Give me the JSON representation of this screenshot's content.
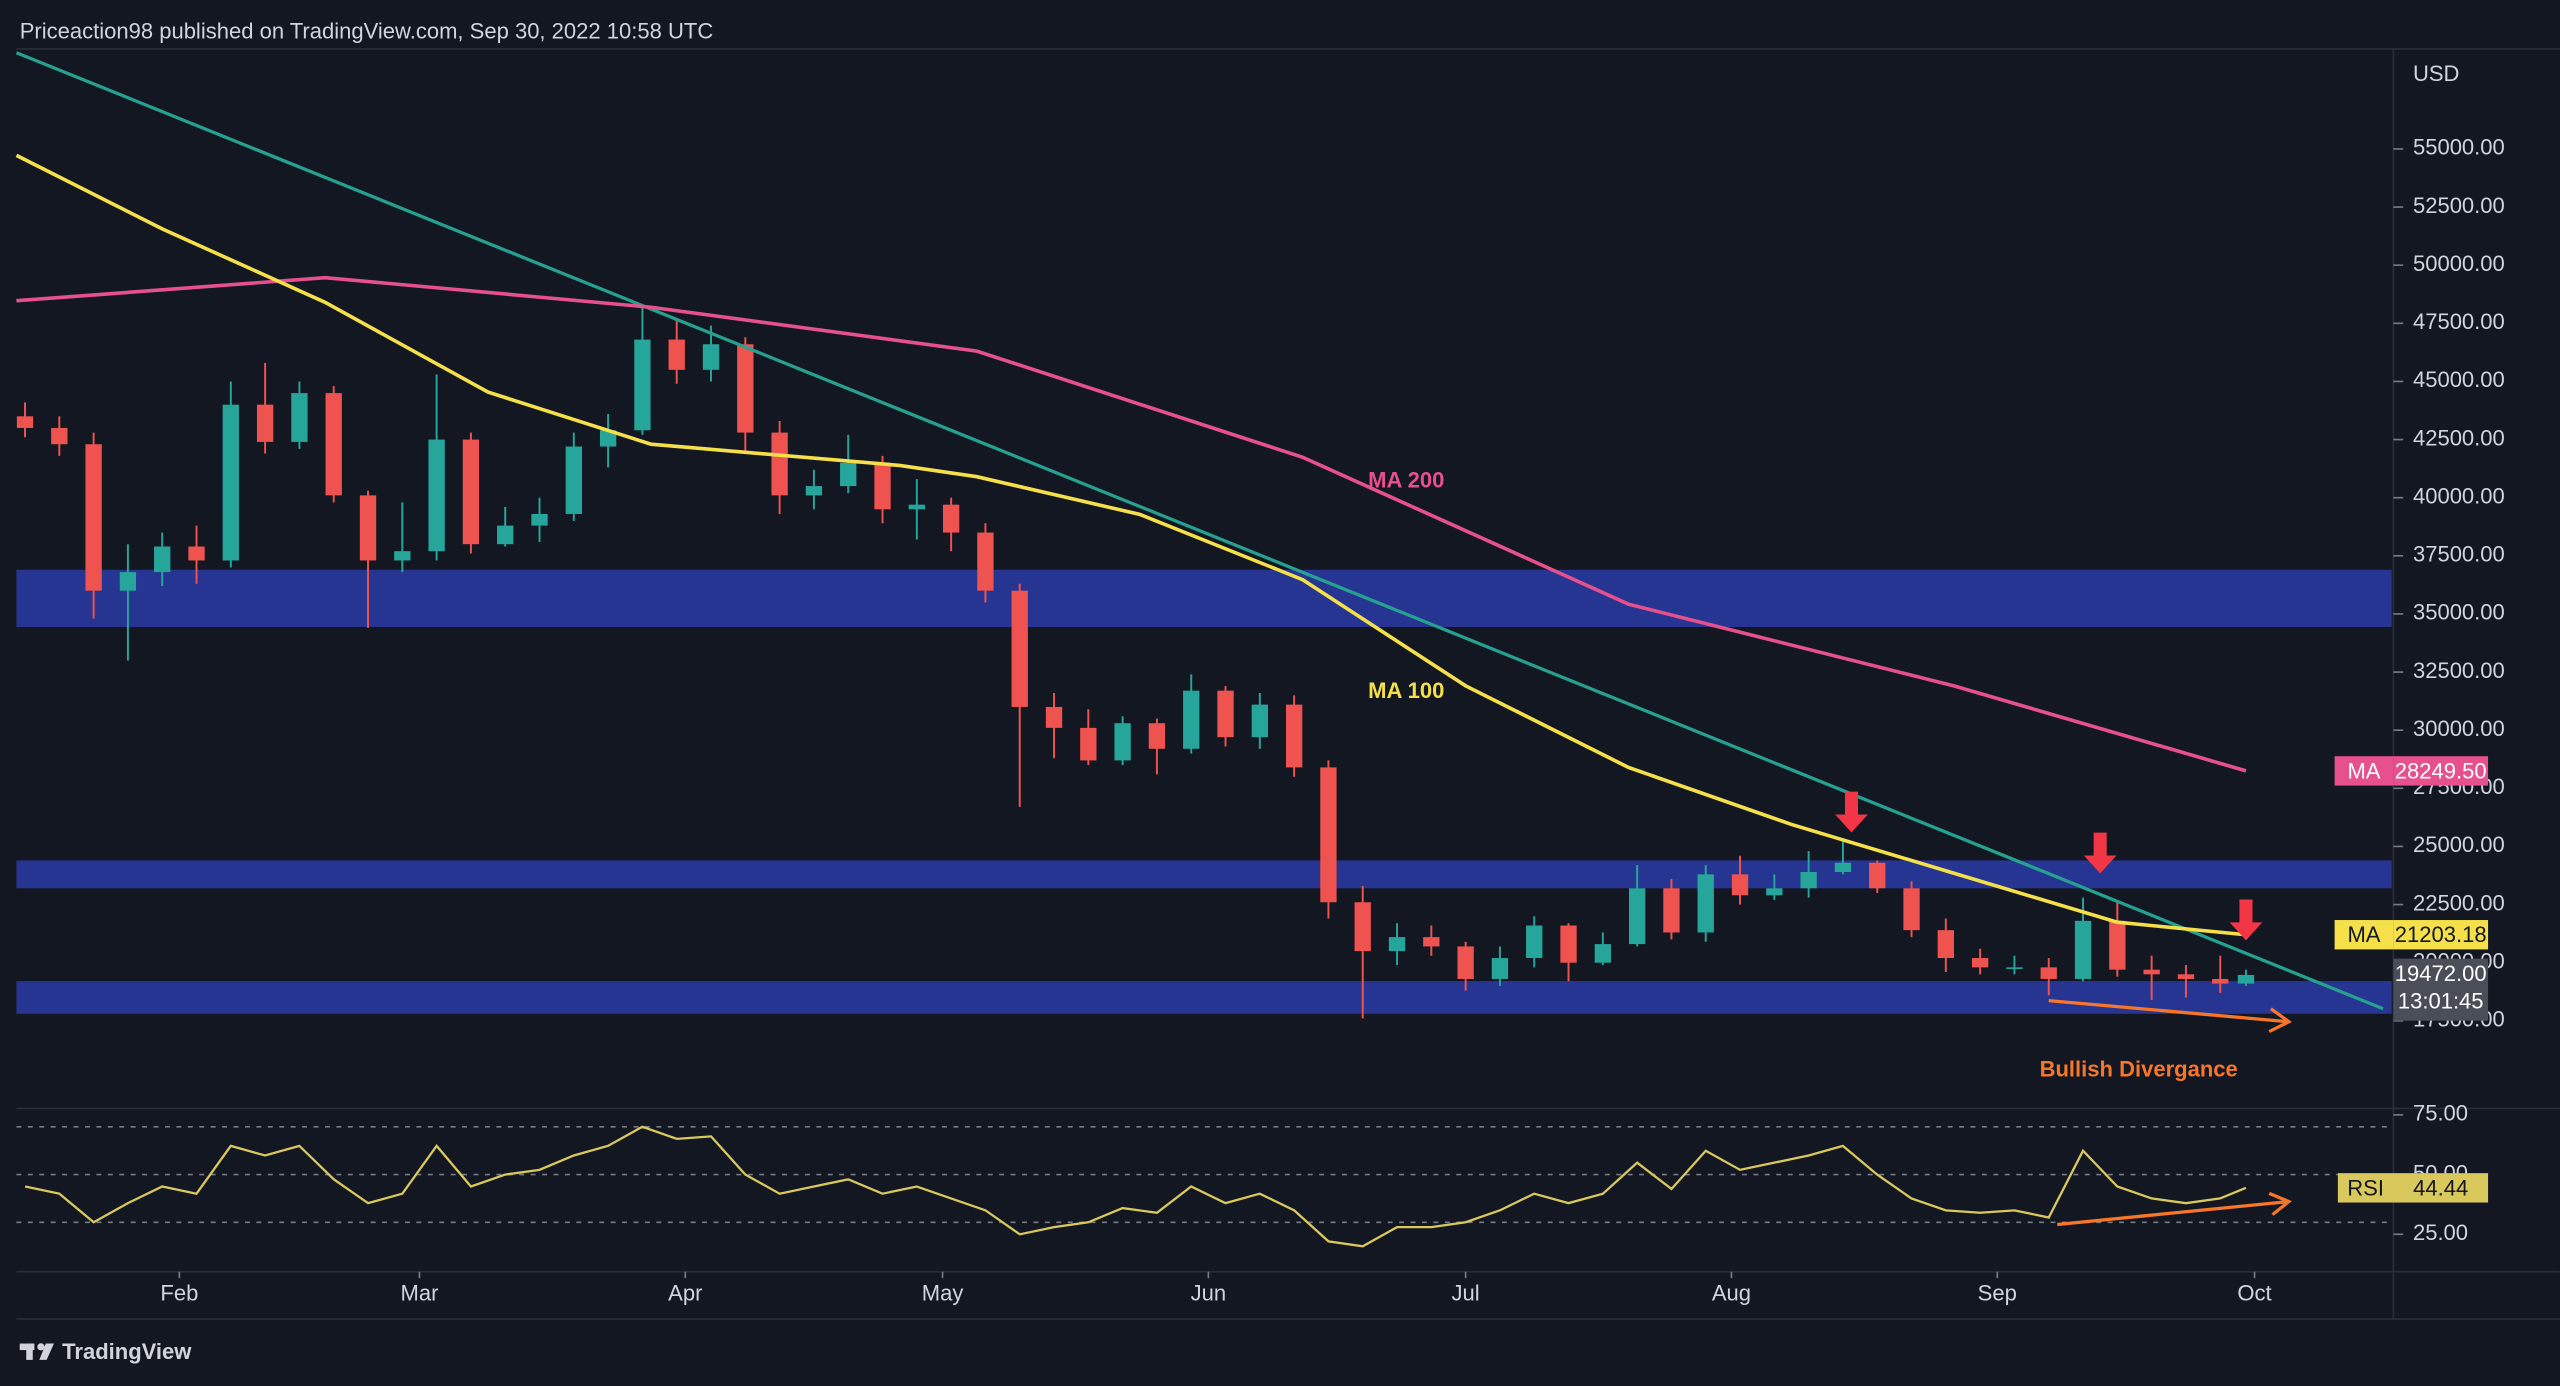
{
  "header": "Priceaction98 published on TradingView.com, Sep 30, 2022 10:58 UTC",
  "footer": "TradingView",
  "chart_data": [
    {
      "type": "candlestick",
      "currency": "USD",
      "x": [
        "2022-01-14",
        "2022-01-18",
        "2022-01-22",
        "2022-01-26",
        "2022-01-30",
        "2022-02-03",
        "2022-02-07",
        "2022-02-11",
        "2022-02-15",
        "2022-02-19",
        "2022-02-23",
        "2022-02-27",
        "2022-03-03",
        "2022-03-07",
        "2022-03-11",
        "2022-03-15",
        "2022-03-19",
        "2022-03-23",
        "2022-03-27",
        "2022-03-31",
        "2022-04-04",
        "2022-04-08",
        "2022-04-12",
        "2022-04-16",
        "2022-04-20",
        "2022-04-24",
        "2022-04-28",
        "2022-05-02",
        "2022-05-06",
        "2022-05-10",
        "2022-05-14",
        "2022-05-18",
        "2022-05-22",
        "2022-05-26",
        "2022-05-30",
        "2022-06-03",
        "2022-06-07",
        "2022-06-11",
        "2022-06-15",
        "2022-06-19",
        "2022-06-23",
        "2022-06-27",
        "2022-07-01",
        "2022-07-05",
        "2022-07-09",
        "2022-07-13",
        "2022-07-17",
        "2022-07-21",
        "2022-07-25",
        "2022-07-29",
        "2022-08-02",
        "2022-08-06",
        "2022-08-10",
        "2022-08-14",
        "2022-08-18",
        "2022-08-22",
        "2022-08-26",
        "2022-08-30",
        "2022-09-03",
        "2022-09-07",
        "2022-09-11",
        "2022-09-15",
        "2022-09-19",
        "2022-09-23",
        "2022-09-27",
        "2022-09-30"
      ],
      "open": [
        43500,
        43000,
        42300,
        36000,
        36800,
        37900,
        37300,
        44000,
        42400,
        44500,
        40100,
        37300,
        37700,
        42500,
        38000,
        38800,
        39300,
        42200,
        42900,
        46800,
        45500,
        46600,
        42800,
        40100,
        40500,
        41500,
        39500,
        39700,
        38500,
        36000,
        31000,
        30100,
        28700,
        30300,
        29200,
        31700,
        29700,
        31100,
        28400,
        22600,
        20500,
        21100,
        20700,
        19300,
        20200,
        21600,
        20000,
        20800,
        23200,
        21300,
        23800,
        22900,
        23200,
        23900,
        24300,
        23200,
        21400,
        20200,
        19800,
        19800,
        19300,
        21800,
        19700,
        19500,
        19300,
        19100
      ],
      "high": [
        44100,
        43500,
        42800,
        38000,
        38500,
        38800,
        45000,
        45800,
        45000,
        44800,
        40300,
        39800,
        45300,
        42800,
        39600,
        40000,
        42800,
        43600,
        48200,
        47600,
        47400,
        46900,
        43300,
        41200,
        42700,
        41800,
        40800,
        40000,
        38900,
        36300,
        31600,
        30900,
        30600,
        30500,
        32400,
        31900,
        31600,
        31500,
        28700,
        23300,
        21700,
        21600,
        20900,
        20700,
        22000,
        21700,
        21300,
        24200,
        23600,
        24200,
        24600,
        23800,
        24800,
        25200,
        24400,
        23500,
        21900,
        20600,
        20300,
        20200,
        22800,
        22600,
        20300,
        19900,
        20300,
        19700
      ],
      "low": [
        42600,
        41800,
        34800,
        33000,
        36200,
        36300,
        37000,
        41900,
        42100,
        39800,
        34400,
        36800,
        37300,
        37600,
        37900,
        38100,
        39000,
        41300,
        42700,
        44900,
        45000,
        42000,
        39300,
        39500,
        40200,
        38900,
        38200,
        37700,
        35500,
        26700,
        28800,
        28500,
        28500,
        28100,
        29000,
        29300,
        29200,
        28000,
        21900,
        17600,
        19900,
        20300,
        18800,
        19000,
        19800,
        19200,
        19900,
        20700,
        21000,
        20900,
        22500,
        22700,
        22800,
        23800,
        23000,
        21100,
        19600,
        19500,
        19500,
        18600,
        19200,
        19400,
        18400,
        18500,
        18700,
        19000
      ],
      "close": [
        43000,
        42300,
        36000,
        36800,
        37900,
        37300,
        44000,
        42400,
        44500,
        40100,
        37300,
        37700,
        42500,
        38000,
        38800,
        39300,
        42200,
        42900,
        46800,
        45500,
        46600,
        42800,
        40100,
        40500,
        41500,
        39500,
        39700,
        38500,
        36000,
        31000,
        30100,
        28700,
        30300,
        29200,
        31700,
        29700,
        31100,
        28400,
        22600,
        20500,
        21100,
        20700,
        19300,
        20200,
        21600,
        20000,
        20800,
        23200,
        21300,
        23800,
        22900,
        23200,
        23900,
        24300,
        23200,
        21400,
        20200,
        19800,
        19800,
        19300,
        21800,
        19700,
        19500,
        19300,
        19100,
        19472
      ],
      "up_color": "#26a69a",
      "down_color": "#ef5350",
      "price_label": "19472.00",
      "countdown": "13:01:45",
      "xlim": [
        "2022-01-13",
        "2022-10-17"
      ],
      "ylim": [
        13800,
        59300
      ],
      "yticks": [
        {
          "value": 17500,
          "label": "17500.00"
        },
        {
          "value": 20000,
          "label": "20000.00"
        },
        {
          "value": 22500,
          "label": "22500.00"
        },
        {
          "value": 25000,
          "label": "25000.00"
        },
        {
          "value": 27500,
          "label": "27500.00"
        },
        {
          "value": 30000,
          "label": "30000.00"
        },
        {
          "value": 32500,
          "label": "32500.00"
        },
        {
          "value": 35000,
          "label": "35000.00"
        },
        {
          "value": 37500,
          "label": "37500.00"
        },
        {
          "value": 40000,
          "label": "40000.00"
        },
        {
          "value": 42500,
          "label": "42500.00"
        },
        {
          "value": 45000,
          "label": "45000.00"
        },
        {
          "value": 47500,
          "label": "47500.00"
        },
        {
          "value": 50000,
          "label": "50000.00"
        },
        {
          "value": 52500,
          "label": "52500.00"
        },
        {
          "value": 55000,
          "label": "55000.00"
        }
      ],
      "series": [
        {
          "name": "MA 200",
          "tag": "MA",
          "end_label": "28249.50",
          "color": "#e6508c",
          "x": [
            "2022-01-13",
            "2022-02-18",
            "2022-03-28",
            "2022-05-05",
            "2022-06-12",
            "2022-07-20",
            "2022-08-27",
            "2022-09-30"
          ],
          "values": [
            48470,
            49460,
            48190,
            46300,
            41740,
            35420,
            31900,
            28249.5
          ]
        },
        {
          "name": "MA 100",
          "tag": "MA",
          "end_label": "21203.18",
          "color": "#f5e04a",
          "x": [
            "2022-01-13",
            "2022-01-30",
            "2022-02-18",
            "2022-03-09",
            "2022-03-28",
            "2022-04-26",
            "2022-05-05",
            "2022-05-24",
            "2022-06-12",
            "2022-07-01",
            "2022-07-20",
            "2022-08-08",
            "2022-08-27",
            "2022-09-15",
            "2022-09-30"
          ],
          "values": [
            54720,
            51560,
            48400,
            44540,
            42300,
            41390,
            40900,
            39280,
            36470,
            31910,
            28400,
            25950,
            23840,
            21740,
            21203.18
          ]
        }
      ],
      "trendline": {
        "color": "#26a08f",
        "x": [
          "2022-01-13",
          "2022-10-16"
        ],
        "values": [
          59140,
          18020
        ]
      },
      "zone_color": "#2a3aa6",
      "zones": [
        {
          "from": 34440,
          "to": 36900
        },
        {
          "from": 23200,
          "to": 24400
        },
        {
          "from": 17800,
          "to": 19210
        }
      ],
      "arrows": {
        "color": "#f23645",
        "x": [
          "2022-08-15",
          "2022-09-13",
          "2022-09-30"
        ],
        "values": [
          25600,
          23840,
          20960
        ]
      },
      "divergence": {
        "label": "Bullish Divergance",
        "color": "#f7762a",
        "x": [
          "2022-09-07",
          "2022-10-05"
        ],
        "values": [
          18370,
          17460
        ]
      }
    },
    {
      "type": "line",
      "xlim": [
        "2022-01-13",
        "2022-10-17"
      ],
      "xticks": [
        {
          "value": "2022-02-01",
          "label": "Feb"
        },
        {
          "value": "2022-03-01",
          "label": "Mar"
        },
        {
          "value": "2022-04-01",
          "label": "Apr"
        },
        {
          "value": "2022-05-01",
          "label": "May"
        },
        {
          "value": "2022-06-01",
          "label": "Jun"
        },
        {
          "value": "2022-07-01",
          "label": "Jul"
        },
        {
          "value": "2022-08-01",
          "label": "Aug"
        },
        {
          "value": "2022-09-01",
          "label": "Sep"
        },
        {
          "value": "2022-10-01",
          "label": "Oct"
        }
      ],
      "ylim": [
        10,
        77
      ],
      "yticks": [
        {
          "value": 25,
          "label": "25.00"
        },
        {
          "value": 50,
          "label": "50.00"
        },
        {
          "value": 75,
          "label": "75.00"
        }
      ],
      "bands": [
        70,
        50,
        30
      ],
      "band_color": "#787b86",
      "series": [
        {
          "name": "RSI",
          "color": "#d9c85c",
          "x": [
            "2022-01-14",
            "2022-01-18",
            "2022-01-22",
            "2022-01-26",
            "2022-01-30",
            "2022-02-03",
            "2022-02-07",
            "2022-02-11",
            "2022-02-15",
            "2022-02-19",
            "2022-02-23",
            "2022-02-27",
            "2022-03-03",
            "2022-03-07",
            "2022-03-11",
            "2022-03-15",
            "2022-03-19",
            "2022-03-23",
            "2022-03-27",
            "2022-03-31",
            "2022-04-04",
            "2022-04-08",
            "2022-04-12",
            "2022-04-16",
            "2022-04-20",
            "2022-04-24",
            "2022-04-28",
            "2022-05-02",
            "2022-05-06",
            "2022-05-10",
            "2022-05-14",
            "2022-05-18",
            "2022-05-22",
            "2022-05-26",
            "2022-05-30",
            "2022-06-03",
            "2022-06-07",
            "2022-06-11",
            "2022-06-15",
            "2022-06-19",
            "2022-06-23",
            "2022-06-27",
            "2022-07-01",
            "2022-07-05",
            "2022-07-09",
            "2022-07-13",
            "2022-07-17",
            "2022-07-21",
            "2022-07-25",
            "2022-07-29",
            "2022-08-02",
            "2022-08-06",
            "2022-08-10",
            "2022-08-14",
            "2022-08-18",
            "2022-08-22",
            "2022-08-26",
            "2022-08-30",
            "2022-09-03",
            "2022-09-07",
            "2022-09-11",
            "2022-09-15",
            "2022-09-19",
            "2022-09-23",
            "2022-09-27",
            "2022-09-30"
          ],
          "values": [
            45,
            42,
            30,
            38,
            45,
            42,
            62,
            58,
            62,
            48,
            38,
            42,
            62,
            45,
            50,
            52,
            58,
            62,
            70,
            65,
            66,
            50,
            42,
            45,
            48,
            42,
            45,
            40,
            35,
            25,
            28,
            30,
            36,
            34,
            45,
            38,
            42,
            35,
            22,
            20,
            28,
            28,
            30,
            35,
            42,
            38,
            42,
            55,
            44,
            60,
            52,
            55,
            58,
            62,
            50,
            40,
            35,
            34,
            35,
            32,
            60,
            45,
            40,
            38,
            40,
            44.44
          ]
        }
      ],
      "divergence": {
        "color": "#f7762a",
        "x": [
          "2022-09-08",
          "2022-10-05"
        ],
        "values": [
          29.1,
          38.7
        ]
      }
    }
  ]
}
